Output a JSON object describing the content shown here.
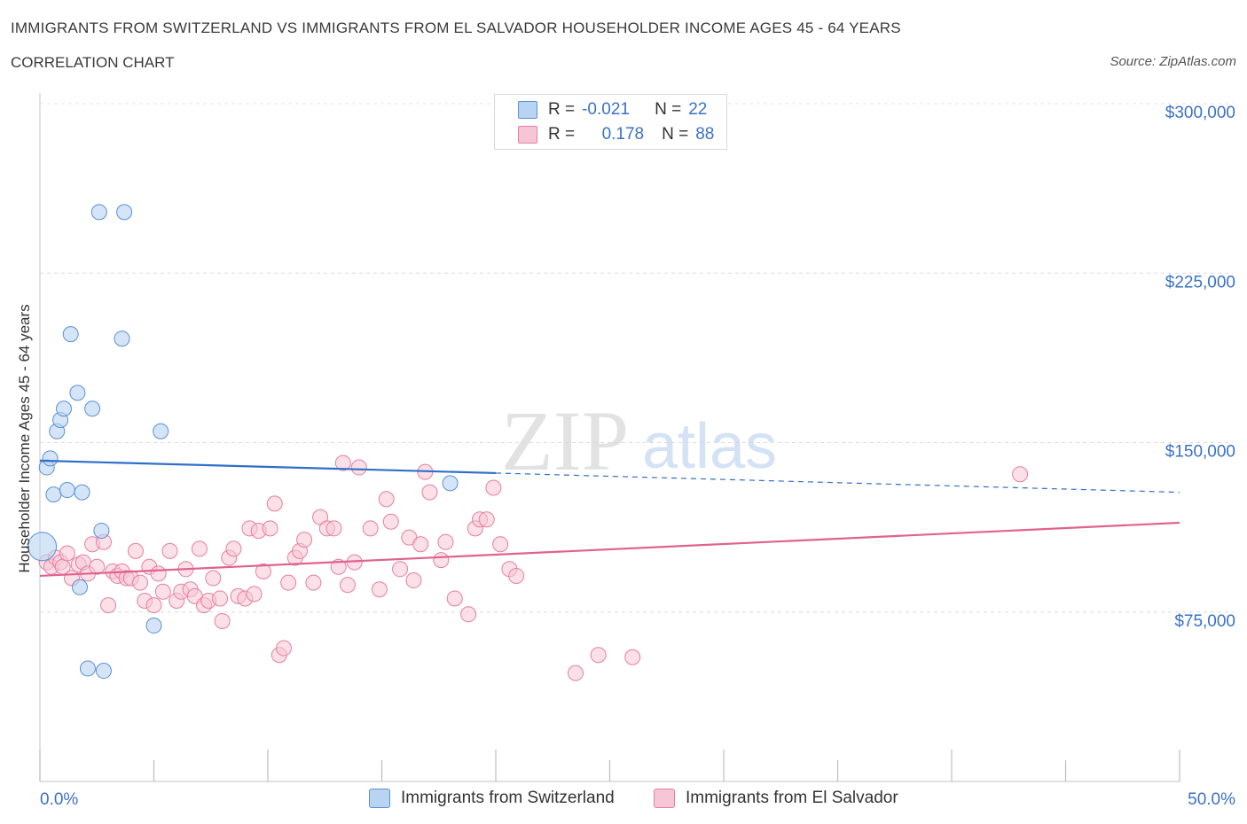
{
  "header": {
    "title": "IMMIGRANTS FROM SWITZERLAND VS IMMIGRANTS FROM EL SALVADOR HOUSEHOLDER INCOME AGES 45 - 64 YEARS",
    "subtitle": "CORRELATION CHART",
    "source": "Source: ZipAtlas.com"
  },
  "legend": {
    "row1": {
      "r_label": "R =",
      "r_value": "-0.021",
      "n_label": "N =",
      "n_value": "22"
    },
    "row2": {
      "r_label": "R =",
      "r_value": "0.178",
      "n_label": "N =",
      "n_value": "88"
    }
  },
  "bottom_legend": {
    "series1": "Immigrants from Switzerland",
    "series2": "Immigrants from El Salvador"
  },
  "watermark": {
    "zip": "ZIP",
    "atlas": "atlas"
  },
  "colors": {
    "blue_fill": "#b9d3f3",
    "blue_stroke": "#5b8fd6",
    "blue_line": "#2f6fc9",
    "pink_fill": "#f7c6d6",
    "pink_stroke": "#e77ea1",
    "pink_line": "#e0628f",
    "tick_label": "#3a72c8"
  },
  "chart_data": {
    "type": "scatter",
    "title": "IMMIGRANTS FROM SWITZERLAND VS IMMIGRANTS FROM EL SALVADOR HOUSEHOLDER INCOME AGES 45 - 64 YEARS",
    "xlabel": "",
    "ylabel": "Householder Income Ages 45 - 64 years",
    "xlim": [
      0,
      50
    ],
    "ylim": [
      0,
      300000
    ],
    "x_tick_labels": [
      "0.0%",
      "50.0%"
    ],
    "y_ticks": [
      75000,
      150000,
      225000,
      300000
    ],
    "y_tick_labels": [
      "$75,000",
      "$150,000",
      "$225,000",
      "$300,000"
    ],
    "grid": true,
    "legend_position": "top-center",
    "series": [
      {
        "name": "Immigrants from Switzerland",
        "r": -0.021,
        "n": 22,
        "trend": {
          "x": [
            0,
            20
          ],
          "y": [
            142000,
            136500
          ],
          "dashed_to": {
            "x": 50,
            "y": 128000
          }
        },
        "points": [
          {
            "x": 0.1,
            "y": 104000
          },
          {
            "x": 0.3,
            "y": 139000
          },
          {
            "x": 0.45,
            "y": 143000
          },
          {
            "x": 0.6,
            "y": 127000
          },
          {
            "x": 0.75,
            "y": 155000
          },
          {
            "x": 0.9,
            "y": 160000
          },
          {
            "x": 1.05,
            "y": 165000
          },
          {
            "x": 1.2,
            "y": 129000
          },
          {
            "x": 1.35,
            "y": 198000
          },
          {
            "x": 1.65,
            "y": 172000
          },
          {
            "x": 1.75,
            "y": 86000
          },
          {
            "x": 1.85,
            "y": 128000
          },
          {
            "x": 2.1,
            "y": 50000
          },
          {
            "x": 2.3,
            "y": 165000
          },
          {
            "x": 2.6,
            "y": 252000
          },
          {
            "x": 2.7,
            "y": 111000
          },
          {
            "x": 2.8,
            "y": 49000
          },
          {
            "x": 3.7,
            "y": 252000
          },
          {
            "x": 3.6,
            "y": 196000
          },
          {
            "x": 5.0,
            "y": 69000
          },
          {
            "x": 5.3,
            "y": 155000
          },
          {
            "x": 18.0,
            "y": 132000
          }
        ]
      },
      {
        "name": "Immigrants from El Salvador",
        "r": 0.178,
        "n": 88,
        "trend": {
          "x": [
            0,
            50
          ],
          "y": [
            91000,
            114500
          ]
        },
        "points": [
          {
            "x": 0.3,
            "y": 97000
          },
          {
            "x": 0.5,
            "y": 95000
          },
          {
            "x": 0.7,
            "y": 99000
          },
          {
            "x": 0.9,
            "y": 97000
          },
          {
            "x": 1.0,
            "y": 95000
          },
          {
            "x": 1.2,
            "y": 101000
          },
          {
            "x": 1.4,
            "y": 90000
          },
          {
            "x": 1.7,
            "y": 96000
          },
          {
            "x": 1.9,
            "y": 97000
          },
          {
            "x": 2.1,
            "y": 92000
          },
          {
            "x": 2.3,
            "y": 105000
          },
          {
            "x": 2.5,
            "y": 95000
          },
          {
            "x": 2.8,
            "y": 106000
          },
          {
            "x": 3.0,
            "y": 78000
          },
          {
            "x": 3.2,
            "y": 93000
          },
          {
            "x": 3.4,
            "y": 91000
          },
          {
            "x": 3.6,
            "y": 93000
          },
          {
            "x": 3.8,
            "y": 90000
          },
          {
            "x": 4.0,
            "y": 90000
          },
          {
            "x": 4.2,
            "y": 102000
          },
          {
            "x": 4.4,
            "y": 88000
          },
          {
            "x": 4.6,
            "y": 80000
          },
          {
            "x": 4.8,
            "y": 95000
          },
          {
            "x": 5.0,
            "y": 78000
          },
          {
            "x": 5.2,
            "y": 92000
          },
          {
            "x": 5.4,
            "y": 84000
          },
          {
            "x": 5.7,
            "y": 102000
          },
          {
            "x": 6.0,
            "y": 80000
          },
          {
            "x": 6.2,
            "y": 84000
          },
          {
            "x": 6.4,
            "y": 94000
          },
          {
            "x": 6.6,
            "y": 85000
          },
          {
            "x": 6.8,
            "y": 82000
          },
          {
            "x": 7.0,
            "y": 103000
          },
          {
            "x": 7.2,
            "y": 78000
          },
          {
            "x": 7.4,
            "y": 80000
          },
          {
            "x": 7.6,
            "y": 90000
          },
          {
            "x": 7.9,
            "y": 81000
          },
          {
            "x": 8.0,
            "y": 71000
          },
          {
            "x": 8.3,
            "y": 99000
          },
          {
            "x": 8.5,
            "y": 103000
          },
          {
            "x": 8.7,
            "y": 82000
          },
          {
            "x": 9.0,
            "y": 81000
          },
          {
            "x": 9.2,
            "y": 112000
          },
          {
            "x": 9.4,
            "y": 83000
          },
          {
            "x": 9.6,
            "y": 111000
          },
          {
            "x": 9.8,
            "y": 93000
          },
          {
            "x": 10.1,
            "y": 112000
          },
          {
            "x": 10.3,
            "y": 123000
          },
          {
            "x": 10.5,
            "y": 56000
          },
          {
            "x": 10.7,
            "y": 59000
          },
          {
            "x": 10.9,
            "y": 88000
          },
          {
            "x": 11.2,
            "y": 99000
          },
          {
            "x": 11.4,
            "y": 102000
          },
          {
            "x": 11.6,
            "y": 107000
          },
          {
            "x": 12.0,
            "y": 88000
          },
          {
            "x": 12.3,
            "y": 117000
          },
          {
            "x": 12.6,
            "y": 112000
          },
          {
            "x": 12.9,
            "y": 112000
          },
          {
            "x": 13.1,
            "y": 95000
          },
          {
            "x": 13.3,
            "y": 141000
          },
          {
            "x": 13.5,
            "y": 87000
          },
          {
            "x": 13.8,
            "y": 97000
          },
          {
            "x": 14.0,
            "y": 139000
          },
          {
            "x": 14.5,
            "y": 112000
          },
          {
            "x": 14.9,
            "y": 85000
          },
          {
            "x": 15.2,
            "y": 125000
          },
          {
            "x": 15.4,
            "y": 115000
          },
          {
            "x": 15.8,
            "y": 94000
          },
          {
            "x": 16.2,
            "y": 108000
          },
          {
            "x": 16.4,
            "y": 89000
          },
          {
            "x": 16.7,
            "y": 105000
          },
          {
            "x": 16.9,
            "y": 137000
          },
          {
            "x": 17.1,
            "y": 128000
          },
          {
            "x": 17.6,
            "y": 98000
          },
          {
            "x": 17.8,
            "y": 106000
          },
          {
            "x": 18.2,
            "y": 81000
          },
          {
            "x": 18.8,
            "y": 74000
          },
          {
            "x": 19.1,
            "y": 112000
          },
          {
            "x": 19.3,
            "y": 116000
          },
          {
            "x": 19.6,
            "y": 116000
          },
          {
            "x": 19.9,
            "y": 130000
          },
          {
            "x": 20.2,
            "y": 105000
          },
          {
            "x": 20.6,
            "y": 94000
          },
          {
            "x": 20.9,
            "y": 91000
          },
          {
            "x": 23.5,
            "y": 48000
          },
          {
            "x": 24.5,
            "y": 56000
          },
          {
            "x": 26.0,
            "y": 55000
          },
          {
            "x": 43.0,
            "y": 136000
          }
        ]
      }
    ]
  }
}
